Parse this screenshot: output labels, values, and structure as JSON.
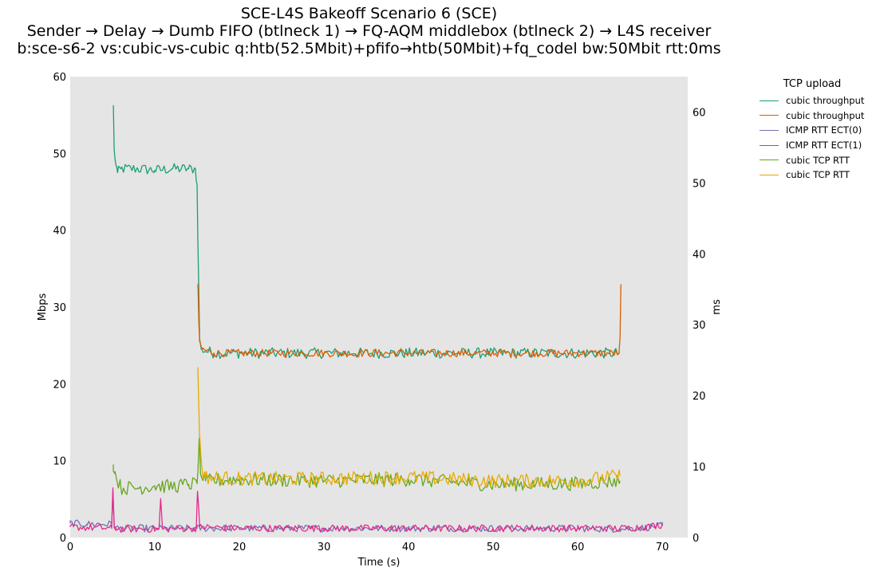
{
  "title": {
    "line1": "SCE-L4S Bakeoff Scenario 6 (SCE)",
    "line2": "Sender → Delay → Dumb FIFO (btlneck 1) → FQ-AQM middlebox (btlneck 2) → L4S receiver",
    "line3": "b:sce-s6-2 vs:cubic-vs-cubic q:htb(52.5Mbit)+pfifo→htb(50Mbit)+fq_codel bw:50Mbit rtt:0ms"
  },
  "chart_data": {
    "type": "line",
    "title": "SCE-L4S Bakeoff Scenario 6 (SCE)",
    "xlabel": "Time (s)",
    "ylabel_left": "Mbps",
    "ylabel_right": "ms",
    "xlim": [
      0,
      73
    ],
    "ylim_left": [
      0,
      60
    ],
    "ylim_right": [
      0,
      65
    ],
    "xticks": [
      "0",
      "10",
      "20",
      "30",
      "40",
      "50",
      "60",
      "70"
    ],
    "yticks_left": [
      "0",
      "10",
      "20",
      "30",
      "40",
      "50",
      "60"
    ],
    "yticks_right": [
      "0",
      "10",
      "20",
      "30",
      "40",
      "50",
      "60"
    ],
    "grid": false,
    "background": "#e5e5e5",
    "legend_title": "TCP upload",
    "legend_placement": "outside-right-top",
    "series": [
      {
        "name": "cubic throughput",
        "axis": "left",
        "color": "#1b9e77",
        "points": [
          [
            5.1,
            56
          ],
          [
            5.2,
            50.5
          ],
          [
            5.4,
            48.5
          ],
          [
            5.6,
            47.5
          ],
          [
            6,
            48
          ],
          [
            8,
            48
          ],
          [
            10,
            47.8
          ],
          [
            12,
            48
          ],
          [
            14,
            48
          ],
          [
            14.8,
            48
          ],
          [
            15,
            46
          ],
          [
            15.1,
            38
          ],
          [
            15.2,
            32
          ],
          [
            15.3,
            26
          ],
          [
            15.5,
            24.5
          ],
          [
            17,
            24
          ],
          [
            20,
            24
          ],
          [
            30,
            24
          ],
          [
            40,
            24
          ],
          [
            50,
            24
          ],
          [
            60,
            24
          ],
          [
            64.9,
            24
          ]
        ],
        "noise": 0.7
      },
      {
        "name": "cubic throughput",
        "axis": "left",
        "color": "#d95f02",
        "points": [
          [
            15.1,
            32.5
          ],
          [
            15.2,
            28
          ],
          [
            15.3,
            25.5
          ],
          [
            15.6,
            24.5
          ],
          [
            17,
            24
          ],
          [
            20,
            24
          ],
          [
            30,
            24
          ],
          [
            40,
            24
          ],
          [
            50,
            24
          ],
          [
            60,
            24
          ],
          [
            64.9,
            24
          ],
          [
            65.0,
            26
          ],
          [
            65.1,
            32.8
          ]
        ],
        "noise": 0.5
      },
      {
        "name": "ICMP RTT ECT(0)",
        "axis": "right",
        "color": "#7570b3",
        "points": [
          [
            0,
            2
          ],
          [
            2,
            1.9
          ],
          [
            4.9,
            1.9
          ],
          [
            5.05,
            6.5
          ],
          [
            5.2,
            2
          ],
          [
            5.4,
            1.3
          ],
          [
            10,
            1.3
          ],
          [
            15,
            1.3
          ],
          [
            20,
            1.3
          ],
          [
            30,
            1.3
          ],
          [
            40,
            1.3
          ],
          [
            50,
            1.3
          ],
          [
            60,
            1.3
          ],
          [
            65,
            1.2
          ],
          [
            68,
            1.4
          ],
          [
            70,
            1.7
          ]
        ],
        "noise": 0.5
      },
      {
        "name": "ICMP RTT ECT(1)",
        "axis": "right",
        "color": "#e7298a",
        "points": [
          [
            0,
            1.5
          ],
          [
            2,
            1.4
          ],
          [
            4.9,
            1.3
          ],
          [
            5.05,
            7
          ],
          [
            5.2,
            1.5
          ],
          [
            5.5,
            1.2
          ],
          [
            10.5,
            1.2
          ],
          [
            10.7,
            5.5
          ],
          [
            10.9,
            1.2
          ],
          [
            14.9,
            1.3
          ],
          [
            15.05,
            6.5
          ],
          [
            15.3,
            1.5
          ],
          [
            20,
            1.3
          ],
          [
            30,
            1.3
          ],
          [
            40,
            1.3
          ],
          [
            50,
            1.3
          ],
          [
            60,
            1.3
          ],
          [
            65,
            1.3
          ],
          [
            68,
            1.5
          ],
          [
            70,
            1.8
          ]
        ],
        "noise": 0.5
      },
      {
        "name": "cubic TCP RTT",
        "axis": "right",
        "color": "#66a61e",
        "points": [
          [
            5.1,
            10.3
          ],
          [
            5.3,
            9
          ],
          [
            6,
            7
          ],
          [
            8,
            7
          ],
          [
            10,
            7.3
          ],
          [
            12,
            7.2
          ],
          [
            14,
            7.5
          ],
          [
            15,
            7.6
          ],
          [
            15.25,
            14
          ],
          [
            15.4,
            9
          ],
          [
            16,
            8
          ],
          [
            20,
            8.2
          ],
          [
            30,
            8
          ],
          [
            40,
            8.2
          ],
          [
            50,
            7.5
          ],
          [
            60,
            7.6
          ],
          [
            65,
            8
          ]
        ],
        "noise": 1.0
      },
      {
        "name": "cubic TCP RTT",
        "axis": "right",
        "color": "#e6ab02",
        "points": [
          [
            15.1,
            24
          ],
          [
            15.3,
            14
          ],
          [
            15.6,
            9.5
          ],
          [
            16,
            8.5
          ],
          [
            20,
            8.3
          ],
          [
            30,
            8.3
          ],
          [
            40,
            8.5
          ],
          [
            50,
            8
          ],
          [
            60,
            8
          ],
          [
            65,
            8.7
          ]
        ],
        "noise": 1.0
      }
    ]
  }
}
